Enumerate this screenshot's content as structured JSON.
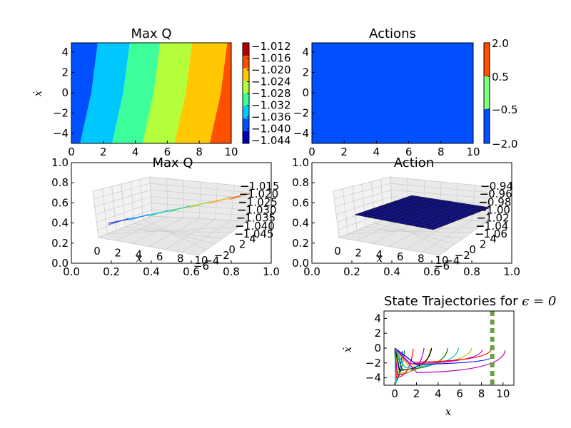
{
  "figure": {
    "bg": "#ffffff"
  },
  "chart_data": [
    {
      "id": "maxq_contour",
      "type": "heatmap",
      "title": "Max Q",
      "xlabel": "",
      "ylabel": "ẋ",
      "xlim": [
        0,
        10
      ],
      "ylim": [
        -5,
        5
      ],
      "xticks": [
        "0",
        "2",
        "4",
        "6",
        "8",
        "10"
      ],
      "yticks": [
        "4",
        "2",
        "0",
        "−2",
        "−4"
      ],
      "colorbar_ticks": [
        "−1.012",
        "−1.016",
        "−1.020",
        "−1.024",
        "−1.028",
        "−1.032",
        "−1.036",
        "−1.040",
        "−1.044"
      ],
      "levels": [
        -1.044,
        -1.04,
        -1.036,
        -1.032,
        -1.028,
        -1.024,
        -1.02,
        -1.016,
        -1.012
      ],
      "bands_x_at_center": [
        -0.6,
        1.1,
        3.1,
        5.0,
        7.0,
        9.2,
        10.6
      ],
      "band_colors": [
        "#0000b4",
        "#0050ff",
        "#00c8ff",
        "#3cff9c",
        "#b4ff3c",
        "#ffc800",
        "#ff5000",
        "#b40000"
      ]
    },
    {
      "id": "actions_contour",
      "type": "heatmap",
      "title": "Actions",
      "xlabel": "",
      "ylabel": "",
      "xlim": [
        0,
        10
      ],
      "ylim": [
        -5,
        5
      ],
      "xticks": [
        "0",
        "2",
        "4",
        "6",
        "8",
        "10"
      ],
      "yticks": [
        "4",
        "2",
        "0",
        "−2",
        "−4"
      ],
      "colorbar_ticks": [
        "2.0",
        "0.5",
        "−0.5",
        "−2.0"
      ],
      "levels": [
        -2.0,
        -0.5,
        0.5,
        2.0
      ],
      "fill_color": "#0050ff",
      "colorbar_colors": [
        "#0050ff",
        "#80ff80",
        "#ff5000"
      ]
    },
    {
      "id": "maxq_3d",
      "type": "line",
      "title": "Max Q",
      "xlabel": "x",
      "outer_xticks": [
        "0.0",
        "0.2",
        "0.4",
        "0.6",
        "0.8",
        "1.0"
      ],
      "outer_yticks": [
        "1.0",
        "0.8",
        "0.6",
        "0.4",
        "0.2",
        "0.0"
      ],
      "x_axis_ticks": [
        "0",
        "2",
        "4",
        "6",
        "8",
        "10"
      ],
      "depth_axis_ticks": [
        "−6",
        "−4",
        "−2",
        "0",
        "2",
        "4"
      ],
      "z_axis_ticks": [
        "−1.015",
        "−1.020",
        "−1.025",
        "−1.030",
        "−1.035",
        "−1.040",
        "−1.045"
      ]
    },
    {
      "id": "action_3d",
      "type": "area",
      "title": "Action",
      "xlabel": "x",
      "outer_xticks": [
        "0.0",
        "0.2",
        "0.4",
        "0.6",
        "0.8",
        "1.0"
      ],
      "outer_yticks": [
        "1.0",
        "0.8",
        "0.6",
        "0.4",
        "0.2",
        "0.0"
      ],
      "x_axis_ticks": [
        "0",
        "2",
        "4",
        "6",
        "8",
        "10"
      ],
      "depth_axis_ticks": [
        "−6",
        "−4",
        "−2",
        "0",
        "2",
        "4"
      ],
      "z_axis_ticks": [
        "−0.94",
        "−0.96",
        "−0.98",
        "−1.00",
        "−1.02",
        "−1.04",
        "−1.06"
      ],
      "surface_color": "#1a1aa0"
    },
    {
      "id": "trajectories",
      "type": "line",
      "title_prefix": "State Trajectories for ",
      "title_math": "ϵ = 0",
      "xlabel": "x",
      "ylabel": "ẋ",
      "xlim": [
        -1,
        11
      ],
      "ylim": [
        -5,
        5
      ],
      "xticks": [
        "0",
        "2",
        "4",
        "6",
        "8",
        "10"
      ],
      "yticks": [
        "4",
        "2",
        "0",
        "−2",
        "−4"
      ],
      "goal_x": 9.0,
      "goal_color": "#6aa03c",
      "series": [
        {
          "color": "#0000ff",
          "end": [
            0.7,
            -0.4
          ],
          "min": [
            0.08,
            -4.6
          ]
        },
        {
          "color": "#008000",
          "end": [
            0.9,
            -0.3
          ],
          "min": [
            0.1,
            -4.2
          ]
        },
        {
          "color": "#ff0000",
          "end": [
            1.7,
            -0.1
          ],
          "min": [
            0.3,
            -4.0
          ]
        },
        {
          "color": "#00bfbf",
          "end": [
            0.5,
            -0.5
          ],
          "min": [
            0.12,
            -4.8
          ]
        },
        {
          "color": "#bf00bf",
          "end": [
            2.7,
            0.0
          ],
          "min": [
            0.6,
            -3.6
          ]
        },
        {
          "color": "#bfbf00",
          "end": [
            3.3,
            -0.1
          ],
          "min": [
            1.0,
            -3.4
          ]
        },
        {
          "color": "#000000",
          "end": [
            3.4,
            0.0
          ],
          "min": [
            1.3,
            -3.0
          ]
        },
        {
          "color": "#008000",
          "end": [
            4.9,
            0.0
          ],
          "min": [
            2.2,
            -2.9
          ]
        },
        {
          "color": "#00bfbf",
          "end": [
            5.9,
            0.0
          ],
          "min": [
            2.9,
            -2.6
          ]
        },
        {
          "color": "#bfbf00",
          "end": [
            7.1,
            0.0
          ],
          "min": [
            3.9,
            -2.3
          ]
        },
        {
          "color": "#bf00bf",
          "end": [
            8.1,
            -0.2
          ],
          "min": [
            4.6,
            -2.1
          ]
        },
        {
          "color": "#ff0000",
          "end": [
            8.9,
            -0.2
          ],
          "min": [
            5.6,
            -1.9
          ]
        },
        {
          "color": "#0000ff",
          "end": [
            9.0,
            -1.2
          ],
          "min": [
            6.4,
            -2.2
          ]
        },
        {
          "color": "#bf00bf",
          "end": [
            10.2,
            -0.3
          ],
          "min": [
            6.6,
            -3.3
          ]
        }
      ]
    }
  ]
}
